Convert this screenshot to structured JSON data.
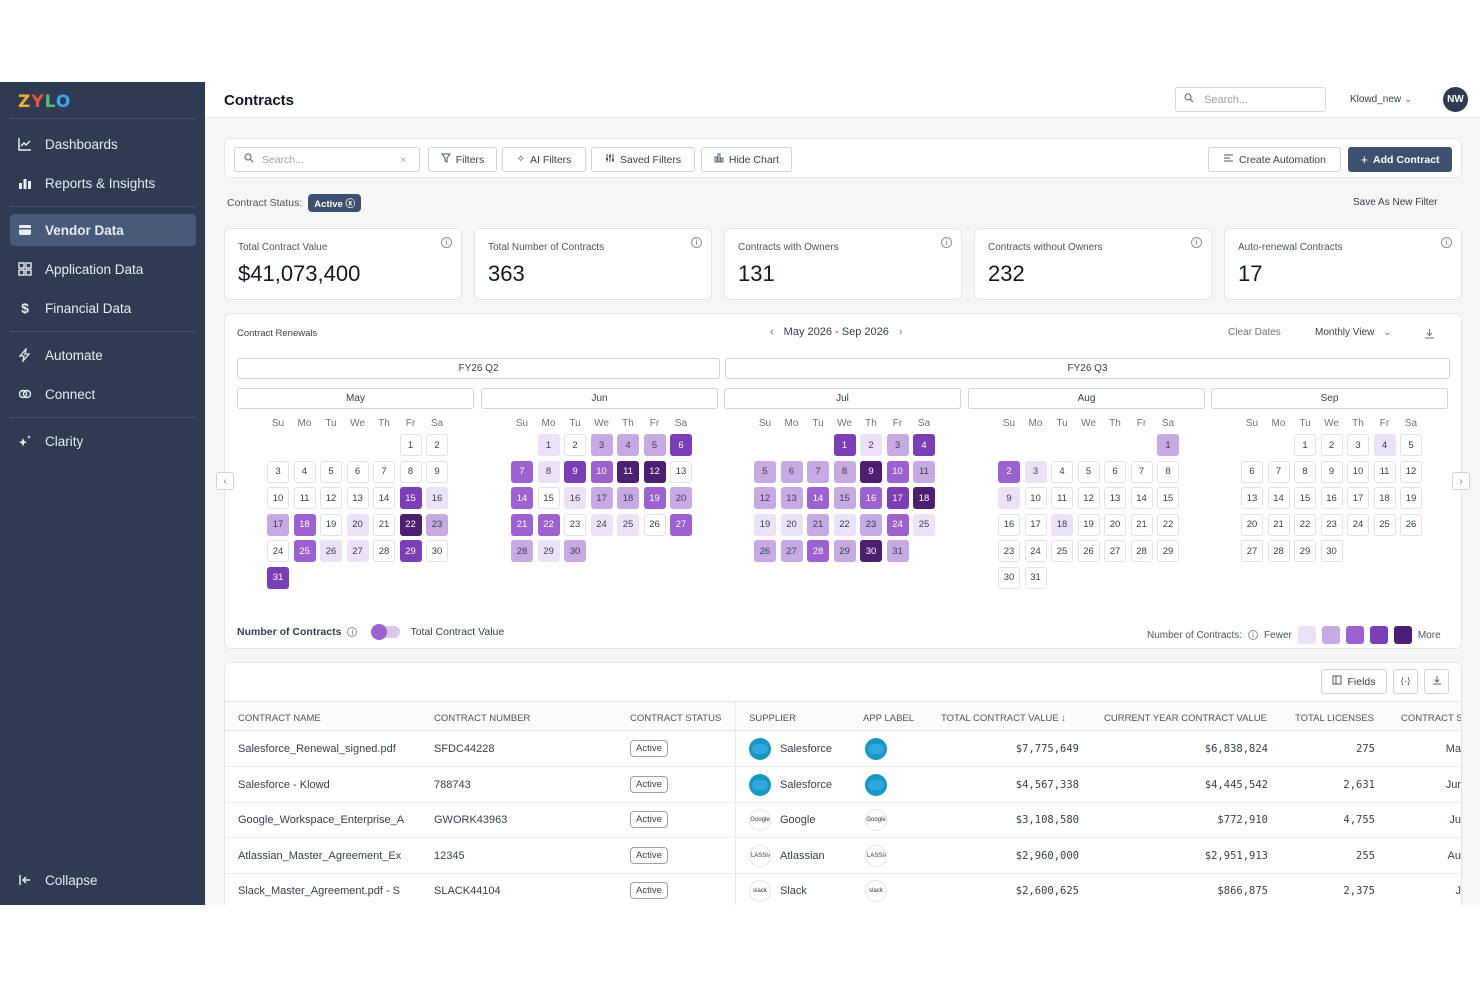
{
  "sidebar": {
    "logo": [
      "Z",
      "Y",
      "L",
      "O"
    ],
    "items": [
      {
        "label": "Dashboards",
        "icon": "chart-line-icon"
      },
      {
        "label": "Reports & Insights",
        "icon": "bar-chart-icon"
      },
      {
        "label": "Vendor Data",
        "icon": "card-icon",
        "active": true
      },
      {
        "label": "Application Data",
        "icon": "grid-icon"
      },
      {
        "label": "Financial Data",
        "icon": "dollar-icon"
      },
      {
        "label": "Automate",
        "icon": "lightning-icon"
      },
      {
        "label": "Connect",
        "icon": "link-icon"
      },
      {
        "label": "Clarity",
        "icon": "sparkle-icon"
      }
    ],
    "collapse_label": "Collapse"
  },
  "header": {
    "title": "Contracts",
    "search_placeholder": "Search...",
    "tenant": "Klowd_new",
    "avatar": "NW"
  },
  "toolbar": {
    "search_placeholder": "Search...",
    "filters": "Filters",
    "ai_filters": "AI Filters",
    "saved_filters": "Saved Filters",
    "hide_chart": "Hide Chart",
    "create_automation": "Create Automation",
    "add_contract": "Add Contract"
  },
  "status_filter": {
    "label": "Contract Status:",
    "value": "Active",
    "save_label": "Save As New Filter"
  },
  "metrics": [
    {
      "label": "Total Contract Value",
      "value": "$41,073,400"
    },
    {
      "label": "Total Number of Contracts",
      "value": "363"
    },
    {
      "label": "Contracts with Owners",
      "value": "131"
    },
    {
      "label": "Contracts without Owners",
      "value": "232"
    },
    {
      "label": "Auto-renewal Contracts",
      "value": "17"
    }
  ],
  "calendar": {
    "title": "Contract Renewals",
    "range": "May 2026 - Sep 2026",
    "clear": "Clear Dates",
    "view": "Monthly View",
    "quarters": [
      "FY26 Q2",
      "FY26 Q3"
    ],
    "weekdays": [
      "Su",
      "Mo",
      "Tu",
      "We",
      "Th",
      "Fr",
      "Sa"
    ],
    "months": [
      {
        "name": "May",
        "start": 5,
        "days": 31,
        "levels": {
          "15": 4,
          "16": 1,
          "17": 2,
          "18": 3,
          "20": 1,
          "22": 5,
          "23": 2,
          "25": 3,
          "26": 1,
          "27": 1,
          "29": 4,
          "31": 4
        }
      },
      {
        "name": "Jun",
        "start": 1,
        "days": 30,
        "levels": {
          "1": 1,
          "3": 2,
          "4": 2,
          "5": 2,
          "6": 4,
          "7": 3,
          "8": 1,
          "9": 4,
          "10": 3,
          "11": 5,
          "12": 5,
          "14": 3,
          "16": 1,
          "17": 2,
          "18": 2,
          "19": 3,
          "20": 2,
          "21": 3,
          "22": 3,
          "24": 1,
          "25": 1,
          "27": 3,
          "28": 2,
          "29": 1,
          "30": 2
        }
      },
      {
        "name": "Jul",
        "start": 3,
        "days": 31,
        "levels": {
          "1": 4,
          "2": 1,
          "3": 2,
          "4": 4,
          "5": 2,
          "6": 2,
          "7": 2,
          "8": 2,
          "9": 5,
          "10": 3,
          "11": 2,
          "12": 2,
          "13": 2,
          "14": 3,
          "15": 2,
          "16": 3,
          "17": 4,
          "18": 5,
          "19": 1,
          "20": 1,
          "21": 2,
          "22": 1,
          "23": 2,
          "24": 3,
          "25": 1,
          "26": 2,
          "27": 2,
          "28": 3,
          "29": 2,
          "30": 5,
          "31": 2
        }
      },
      {
        "name": "Aug",
        "start": 6,
        "days": 31,
        "levels": {
          "1": 2,
          "2": 3,
          "3": 1,
          "9": 1,
          "18": 1
        }
      },
      {
        "name": "Sep",
        "start": 2,
        "days": 30,
        "levels": {
          "4": 1
        }
      }
    ],
    "toggle_left": "Number of Contracts",
    "toggle_right": "Total Contract Value",
    "legend_label": "Number of Contracts:",
    "legend_fewer": "Fewer",
    "legend_more": "More",
    "level_colors": [
      "#ece2f6",
      "#c7a9e3",
      "#9d62cf",
      "#7b3eb6",
      "#4d1f72"
    ]
  },
  "table": {
    "fields_label": "Fields",
    "columns": [
      "CONTRACT NAME",
      "CONTRACT NUMBER",
      "CONTRACT STATUS",
      "SUPPLIER",
      "APP LABEL",
      "TOTAL CONTRACT VALUE",
      "CURRENT YEAR CONTRACT VALUE",
      "TOTAL LICENSES",
      "CONTRACT S"
    ],
    "rows": [
      {
        "name": "Salesforce_Renewal_signed.pdf",
        "number": "SFDC44228",
        "status": "Active",
        "supplier": "Salesforce",
        "logo": "salesforce",
        "total": "$7,775,649",
        "current": "$6,838,824",
        "licenses": "275",
        "tail": "Ma"
      },
      {
        "name": "Salesforce - Klowd",
        "number": "788743",
        "status": "Active",
        "supplier": "Salesforce",
        "logo": "salesforce",
        "total": "$4,567,338",
        "current": "$4,445,542",
        "licenses": "2,631",
        "tail": "Jur"
      },
      {
        "name": "Google_Workspace_Enterprise_A",
        "number": "GWORK43963",
        "status": "Active",
        "supplier": "Google",
        "logo": "Google",
        "total": "$3,108,580",
        "current": "$772,910",
        "licenses": "4,755",
        "tail": "Ju"
      },
      {
        "name": "Atlassian_Master_Agreement_Ex",
        "number": "12345",
        "status": "Active",
        "supplier": "Atlassian",
        "logo": "ATLASSIAN",
        "total": "$2,960,000",
        "current": "$2,951,913",
        "licenses": "255",
        "tail": "Au"
      },
      {
        "name": "Slack_Master_Agreement.pdf - S",
        "number": "SLACK44104",
        "status": "Active",
        "supplier": "Slack",
        "logo": "slack",
        "total": "$2,600,625",
        "current": "$866,875",
        "licenses": "2,375",
        "tail": "J"
      }
    ]
  }
}
